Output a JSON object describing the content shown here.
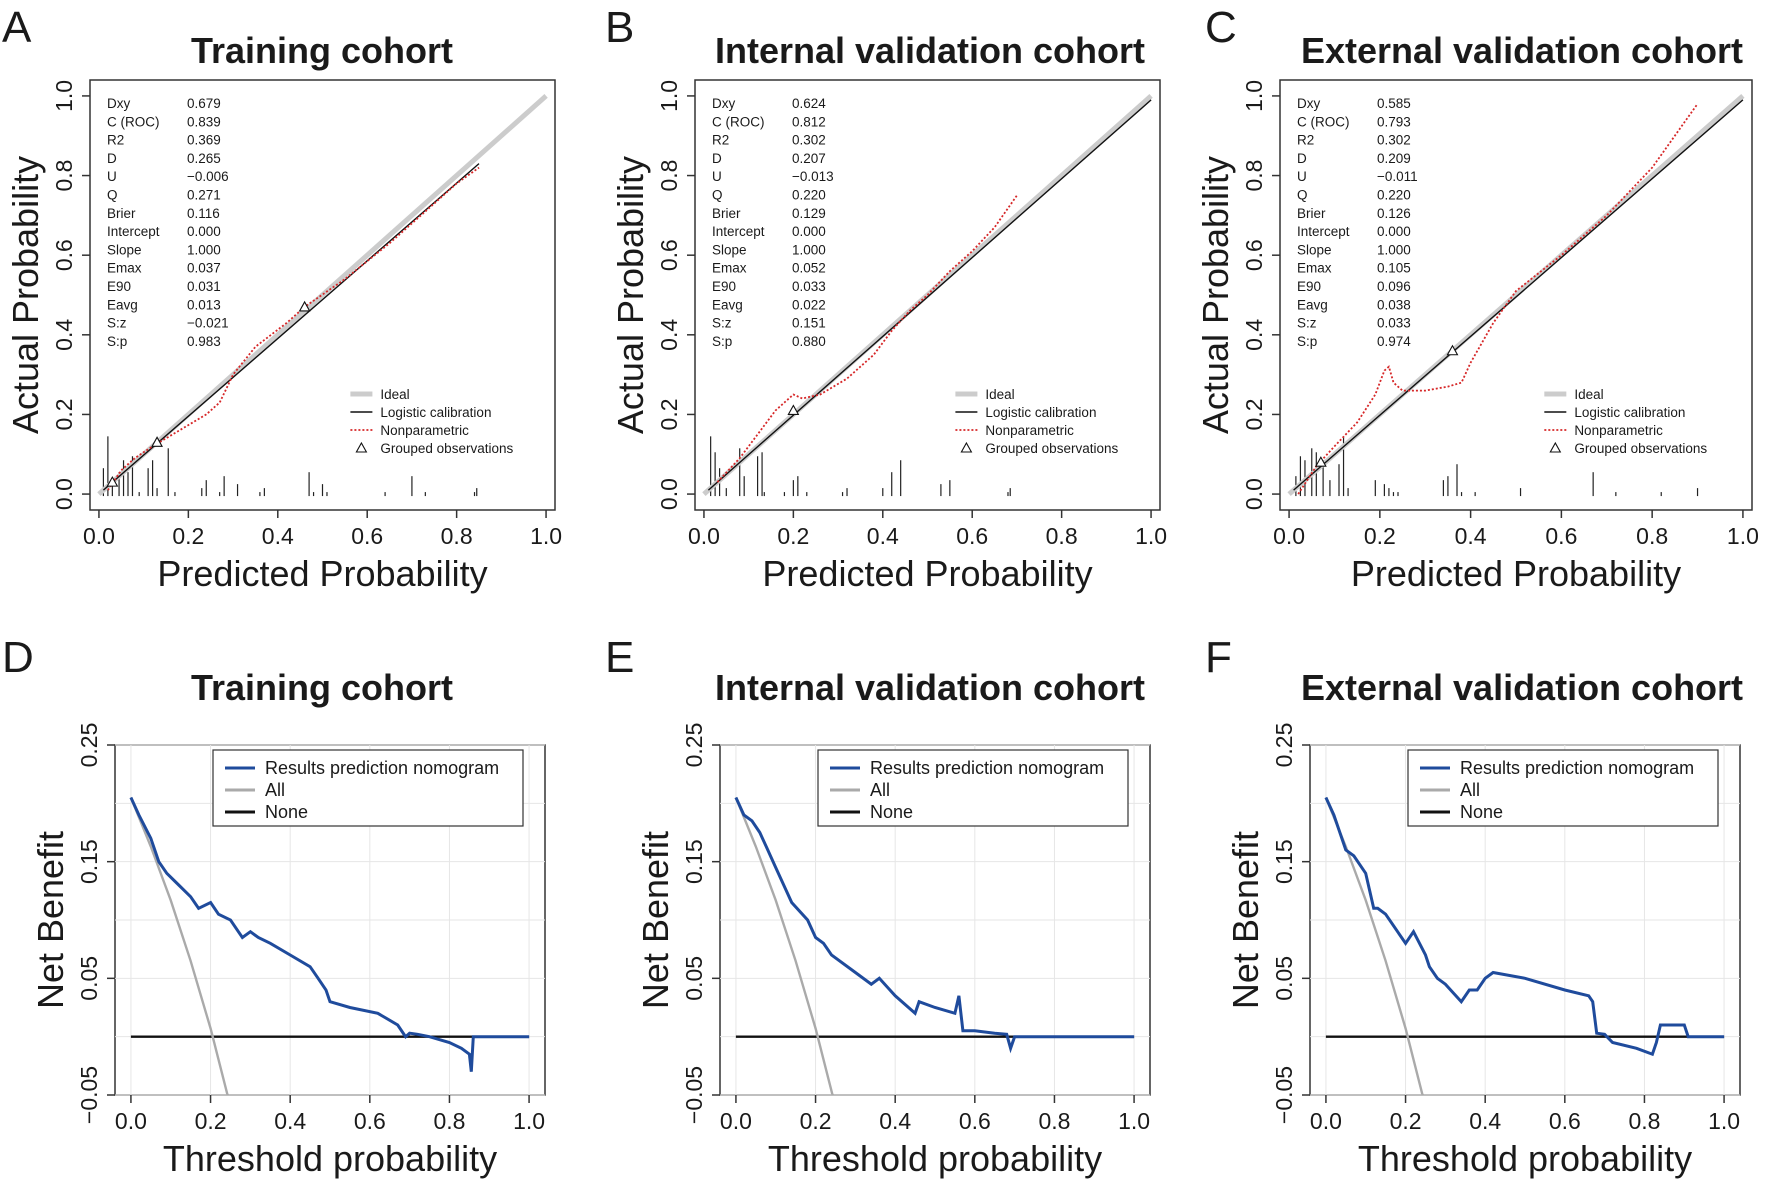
{
  "colors": {
    "model": "#1f4b9c",
    "all": "#aaaaaa",
    "none": "#111111",
    "ideal": "#cccccc",
    "logistic": "#111111",
    "nonparametric": "#d62728",
    "grid": "#e6e6e6"
  },
  "chart_data": [
    {
      "type": "line",
      "panel_letter": "A",
      "title": "Training cohort",
      "xlabel": "Predicted Probability",
      "ylabel": "Actual Probability",
      "xlim": [
        -0.02,
        1.02
      ],
      "ylim": [
        -0.04,
        1.04
      ],
      "x_ticks": [
        "0.0",
        "0.2",
        "0.4",
        "0.6",
        "0.8",
        "1.0"
      ],
      "y_ticks": [
        "0.0",
        "0.2",
        "0.4",
        "0.6",
        "0.8",
        "1.0"
      ],
      "stats": [
        {
          "label": "Dxy",
          "value": "0.679"
        },
        {
          "label": "C (ROC)",
          "value": "0.839"
        },
        {
          "label": "R2",
          "value": "0.369"
        },
        {
          "label": "D",
          "value": "0.265"
        },
        {
          "label": "U",
          "value": "−0.006"
        },
        {
          "label": "Q",
          "value": "0.271"
        },
        {
          "label": "Brier",
          "value": "0.116"
        },
        {
          "label": "Intercept",
          "value": "0.000"
        },
        {
          "label": "Slope",
          "value": "1.000"
        },
        {
          "label": "Emax",
          "value": "0.037"
        },
        {
          "label": "E90",
          "value": "0.031"
        },
        {
          "label": "Eavg",
          "value": "0.013"
        },
        {
          "label": "S:z",
          "value": "−0.021"
        },
        {
          "label": "S:p",
          "value": "0.983"
        }
      ],
      "legend": [
        "Ideal",
        "Logistic calibration",
        "Nonparametric",
        "Grouped observations"
      ],
      "series": [
        {
          "name": "Ideal",
          "x": [
            0,
            1
          ],
          "y": [
            0,
            1
          ]
        },
        {
          "name": "Logistic calibration",
          "x": [
            0.01,
            0.85
          ],
          "y": [
            0.01,
            0.83
          ]
        },
        {
          "name": "Nonparametric",
          "x": [
            0.02,
            0.05,
            0.08,
            0.12,
            0.18,
            0.24,
            0.27,
            0.3,
            0.35,
            0.42,
            0.46,
            0.55,
            0.65,
            0.72,
            0.8,
            0.85
          ],
          "y": [
            0.01,
            0.06,
            0.09,
            0.12,
            0.16,
            0.2,
            0.23,
            0.3,
            0.37,
            0.43,
            0.47,
            0.54,
            0.63,
            0.7,
            0.78,
            0.82
          ]
        },
        {
          "name": "Grouped observations",
          "x": [
            0.03,
            0.13,
            0.46
          ],
          "y": [
            0.03,
            0.13,
            0.47
          ]
        }
      ],
      "rug": {
        "x": [
          0.01,
          0.02,
          0.03,
          0.045,
          0.055,
          0.065,
          0.075,
          0.09,
          0.11,
          0.12,
          0.13,
          0.155,
          0.17,
          0.23,
          0.24,
          0.27,
          0.28,
          0.31,
          0.36,
          0.37,
          0.47,
          0.48,
          0.5,
          0.51,
          0.64,
          0.7,
          0.73,
          0.84,
          0.845
        ],
        "h": [
          0.07,
          0.15,
          0.03,
          0.06,
          0.09,
          0.06,
          0.1,
          0.01,
          0.07,
          0.09,
          0.02,
          0.12,
          0.01,
          0.02,
          0.04,
          0.01,
          0.05,
          0.03,
          0.01,
          0.02,
          0.06,
          0.01,
          0.03,
          0.01,
          0.01,
          0.05,
          0.01,
          0.01,
          0.02
        ]
      }
    },
    {
      "type": "line",
      "panel_letter": "B",
      "title": "Internal validation cohort",
      "xlabel": "Predicted Probability",
      "ylabel": "Actual Probability",
      "xlim": [
        -0.02,
        1.02
      ],
      "ylim": [
        -0.04,
        1.04
      ],
      "x_ticks": [
        "0.0",
        "0.2",
        "0.4",
        "0.6",
        "0.8",
        "1.0"
      ],
      "y_ticks": [
        "0.0",
        "0.2",
        "0.4",
        "0.6",
        "0.8",
        "1.0"
      ],
      "stats": [
        {
          "label": "Dxy",
          "value": "0.624"
        },
        {
          "label": "C (ROC)",
          "value": "0.812"
        },
        {
          "label": "R2",
          "value": "0.302"
        },
        {
          "label": "D",
          "value": "0.207"
        },
        {
          "label": "U",
          "value": "−0.013"
        },
        {
          "label": "Q",
          "value": "0.220"
        },
        {
          "label": "Brier",
          "value": "0.129"
        },
        {
          "label": "Intercept",
          "value": "0.000"
        },
        {
          "label": "Slope",
          "value": "1.000"
        },
        {
          "label": "Emax",
          "value": "0.052"
        },
        {
          "label": "E90",
          "value": "0.033"
        },
        {
          "label": "Eavg",
          "value": "0.022"
        },
        {
          "label": "S:z",
          "value": "0.151"
        },
        {
          "label": "S:p",
          "value": "0.880"
        }
      ],
      "legend": [
        "Ideal",
        "Logistic calibration",
        "Nonparametric",
        "Grouped observations"
      ],
      "series": [
        {
          "name": "Ideal",
          "x": [
            0,
            1
          ],
          "y": [
            0,
            1
          ]
        },
        {
          "name": "Logistic calibration",
          "x": [
            0.01,
            1.0
          ],
          "y": [
            0.01,
            0.99
          ]
        },
        {
          "name": "Nonparametric",
          "x": [
            0.03,
            0.08,
            0.12,
            0.16,
            0.2,
            0.22,
            0.26,
            0.32,
            0.38,
            0.42,
            0.46,
            0.5,
            0.55,
            0.6,
            0.65,
            0.7
          ],
          "y": [
            0.03,
            0.09,
            0.15,
            0.21,
            0.25,
            0.24,
            0.25,
            0.29,
            0.35,
            0.41,
            0.46,
            0.5,
            0.56,
            0.61,
            0.67,
            0.75
          ]
        },
        {
          "name": "Grouped observations",
          "x": [
            0.2
          ],
          "y": [
            0.21
          ]
        }
      ],
      "rug": {
        "x": [
          0.015,
          0.025,
          0.035,
          0.05,
          0.08,
          0.09,
          0.12,
          0.13,
          0.135,
          0.18,
          0.2,
          0.21,
          0.23,
          0.31,
          0.32,
          0.4,
          0.42,
          0.44,
          0.53,
          0.55,
          0.68,
          0.685
        ],
        "h": [
          0.15,
          0.11,
          0.07,
          0.02,
          0.12,
          0.05,
          0.1,
          0.11,
          0.01,
          0.01,
          0.04,
          0.05,
          0.01,
          0.01,
          0.02,
          0.02,
          0.06,
          0.09,
          0.03,
          0.04,
          0.01,
          0.02
        ]
      }
    },
    {
      "type": "line",
      "panel_letter": "C",
      "title": "External validation cohort",
      "xlabel": "Predicted Probability",
      "ylabel": "Actual Probability",
      "xlim": [
        -0.02,
        1.02
      ],
      "ylim": [
        -0.04,
        1.04
      ],
      "x_ticks": [
        "0.0",
        "0.2",
        "0.4",
        "0.6",
        "0.8",
        "1.0"
      ],
      "y_ticks": [
        "0.0",
        "0.2",
        "0.4",
        "0.6",
        "0.8",
        "1.0"
      ],
      "stats": [
        {
          "label": "Dxy",
          "value": "0.585"
        },
        {
          "label": "C (ROC)",
          "value": "0.793"
        },
        {
          "label": "R2",
          "value": "0.302"
        },
        {
          "label": "D",
          "value": "0.209"
        },
        {
          "label": "U",
          "value": "−0.011"
        },
        {
          "label": "Q",
          "value": "0.220"
        },
        {
          "label": "Brier",
          "value": "0.126"
        },
        {
          "label": "Intercept",
          "value": "0.000"
        },
        {
          "label": "Slope",
          "value": "1.000"
        },
        {
          "label": "Emax",
          "value": "0.105"
        },
        {
          "label": "E90",
          "value": "0.096"
        },
        {
          "label": "Eavg",
          "value": "0.038"
        },
        {
          "label": "S:z",
          "value": "0.033"
        },
        {
          "label": "S:p",
          "value": "0.974"
        }
      ],
      "legend": [
        "Ideal",
        "Logistic calibration",
        "Nonparametric",
        "Grouped observations"
      ],
      "series": [
        {
          "name": "Ideal",
          "x": [
            0,
            1
          ],
          "y": [
            0,
            1
          ]
        },
        {
          "name": "Logistic calibration",
          "x": [
            0.01,
            1.0
          ],
          "y": [
            0.01,
            0.99
          ]
        },
        {
          "name": "Nonparametric",
          "x": [
            0.02,
            0.06,
            0.1,
            0.15,
            0.19,
            0.21,
            0.22,
            0.23,
            0.25,
            0.3,
            0.35,
            0.38,
            0.4,
            0.45,
            0.5,
            0.6,
            0.7,
            0.8,
            0.9
          ],
          "y": [
            0.0,
            0.07,
            0.12,
            0.18,
            0.25,
            0.31,
            0.32,
            0.28,
            0.26,
            0.26,
            0.27,
            0.28,
            0.33,
            0.43,
            0.51,
            0.6,
            0.7,
            0.82,
            0.98
          ]
        },
        {
          "name": "Grouped observations",
          "x": [
            0.07,
            0.36
          ],
          "y": [
            0.08,
            0.36
          ]
        }
      ],
      "rug": {
        "x": [
          0.015,
          0.025,
          0.035,
          0.05,
          0.06,
          0.075,
          0.09,
          0.11,
          0.12,
          0.13,
          0.19,
          0.21,
          0.22,
          0.23,
          0.24,
          0.34,
          0.35,
          0.37,
          0.38,
          0.41,
          0.51,
          0.67,
          0.72,
          0.82,
          0.9
        ],
        "h": [
          0.05,
          0.1,
          0.09,
          0.12,
          0.11,
          0.09,
          0.04,
          0.08,
          0.15,
          0.02,
          0.04,
          0.03,
          0.02,
          0.01,
          0.01,
          0.04,
          0.05,
          0.08,
          0.01,
          0.01,
          0.02,
          0.06,
          0.01,
          0.01,
          0.02
        ]
      }
    },
    {
      "type": "line",
      "panel_letter": "D",
      "title": "Training cohort",
      "xlabel": "Threshold probability",
      "ylabel": "Net Benefit",
      "xlim": [
        -0.04,
        1.04
      ],
      "ylim": [
        -0.05,
        0.25
      ],
      "x_ticks": [
        "0.0",
        "0.2",
        "0.4",
        "0.6",
        "0.8",
        "1.0"
      ],
      "y_ticks": [
        "−0.05",
        "0.05",
        "0.15",
        "0.25"
      ],
      "legend": [
        "Results prediction nomogram",
        "All",
        "None"
      ],
      "series": [
        {
          "name": "Results prediction nomogram",
          "x": [
            0,
            0.02,
            0.05,
            0.07,
            0.09,
            0.12,
            0.15,
            0.17,
            0.2,
            0.22,
            0.25,
            0.27,
            0.28,
            0.3,
            0.32,
            0.35,
            0.4,
            0.45,
            0.47,
            0.49,
            0.5,
            0.55,
            0.62,
            0.67,
            0.69,
            0.7,
            0.72,
            0.75,
            0.8,
            0.83,
            0.85,
            0.855,
            0.86,
            0.9,
            1.0
          ],
          "y": [
            0.205,
            0.19,
            0.17,
            0.15,
            0.14,
            0.13,
            0.12,
            0.11,
            0.115,
            0.105,
            0.1,
            0.09,
            0.085,
            0.09,
            0.085,
            0.08,
            0.07,
            0.06,
            0.05,
            0.04,
            0.03,
            0.025,
            0.02,
            0.01,
            0.0,
            0.003,
            0.002,
            0.0,
            -0.005,
            -0.01,
            -0.015,
            -0.03,
            0.0,
            0.0,
            0.0
          ]
        },
        {
          "name": "All",
          "x": [
            0,
            0.05,
            0.1,
            0.15,
            0.2,
            0.25
          ],
          "y": [
            0.205,
            0.163,
            0.117,
            0.065,
            0.007,
            -0.06
          ]
        },
        {
          "name": "None",
          "x": [
            0,
            1
          ],
          "y": [
            0,
            0
          ]
        }
      ]
    },
    {
      "type": "line",
      "panel_letter": "E",
      "title": "Internal validation cohort",
      "xlabel": "Threshold probability",
      "ylabel": "Net Benefit",
      "xlim": [
        -0.04,
        1.04
      ],
      "ylim": [
        -0.05,
        0.25
      ],
      "x_ticks": [
        "0.0",
        "0.2",
        "0.4",
        "0.6",
        "0.8",
        "1.0"
      ],
      "y_ticks": [
        "−0.05",
        "0.05",
        "0.15",
        "0.25"
      ],
      "legend": [
        "Results prediction nomogram",
        "All",
        "None"
      ],
      "series": [
        {
          "name": "Results prediction nomogram",
          "x": [
            0,
            0.02,
            0.04,
            0.06,
            0.08,
            0.1,
            0.14,
            0.18,
            0.2,
            0.22,
            0.24,
            0.3,
            0.34,
            0.36,
            0.4,
            0.45,
            0.46,
            0.5,
            0.55,
            0.56,
            0.57,
            0.6,
            0.65,
            0.68,
            0.69,
            0.7,
            0.8,
            1.0
          ],
          "y": [
            0.205,
            0.19,
            0.185,
            0.175,
            0.16,
            0.145,
            0.115,
            0.1,
            0.085,
            0.08,
            0.07,
            0.055,
            0.045,
            0.05,
            0.035,
            0.02,
            0.03,
            0.025,
            0.02,
            0.035,
            0.005,
            0.005,
            0.003,
            0.002,
            -0.01,
            0.0,
            0.0,
            0.0
          ]
        },
        {
          "name": "All",
          "x": [
            0,
            0.05,
            0.1,
            0.15,
            0.2,
            0.25
          ],
          "y": [
            0.205,
            0.163,
            0.117,
            0.065,
            0.007,
            -0.06
          ]
        },
        {
          "name": "None",
          "x": [
            0,
            1
          ],
          "y": [
            0,
            0
          ]
        }
      ]
    },
    {
      "type": "line",
      "panel_letter": "F",
      "title": "External validation cohort",
      "xlabel": "Threshold probability",
      "ylabel": "Net Benefit",
      "xlim": [
        -0.04,
        1.04
      ],
      "ylim": [
        -0.05,
        0.25
      ],
      "x_ticks": [
        "0.0",
        "0.2",
        "0.4",
        "0.6",
        "0.8",
        "1.0"
      ],
      "y_ticks": [
        "−0.05",
        "0.05",
        "0.15",
        "0.25"
      ],
      "legend": [
        "Results prediction nomogram",
        "All",
        "None"
      ],
      "series": [
        {
          "name": "Results prediction nomogram",
          "x": [
            0,
            0.02,
            0.05,
            0.07,
            0.1,
            0.12,
            0.13,
            0.15,
            0.18,
            0.2,
            0.22,
            0.25,
            0.26,
            0.28,
            0.3,
            0.34,
            0.36,
            0.38,
            0.4,
            0.42,
            0.5,
            0.6,
            0.66,
            0.67,
            0.68,
            0.7,
            0.72,
            0.78,
            0.82,
            0.83,
            0.84,
            0.88,
            0.9,
            0.91,
            1.0
          ],
          "y": [
            0.205,
            0.19,
            0.16,
            0.155,
            0.14,
            0.11,
            0.11,
            0.105,
            0.09,
            0.08,
            0.09,
            0.07,
            0.06,
            0.05,
            0.045,
            0.03,
            0.04,
            0.04,
            0.05,
            0.055,
            0.05,
            0.04,
            0.035,
            0.03,
            0.003,
            0.002,
            -0.005,
            -0.01,
            -0.015,
            -0.005,
            0.01,
            0.01,
            0.01,
            0.0,
            0.0
          ]
        },
        {
          "name": "All",
          "x": [
            0,
            0.05,
            0.1,
            0.15,
            0.2,
            0.25
          ],
          "y": [
            0.205,
            0.163,
            0.117,
            0.065,
            0.007,
            -0.06
          ]
        },
        {
          "name": "None",
          "x": [
            0,
            1
          ],
          "y": [
            0,
            0
          ]
        }
      ]
    }
  ]
}
